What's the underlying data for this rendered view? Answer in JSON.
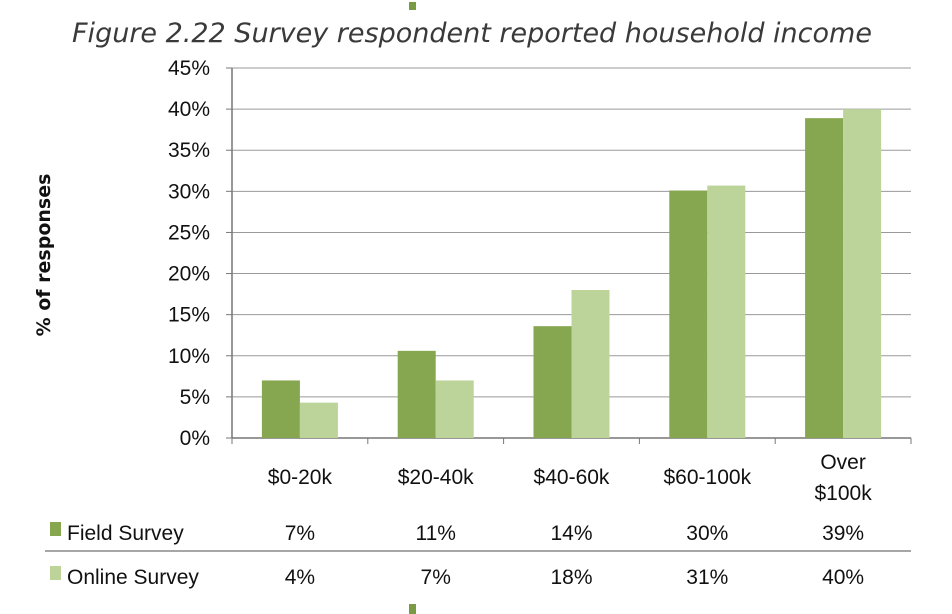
{
  "chart_data": {
    "type": "bar",
    "title": "Figure 2.22  Survey respondent reported household income",
    "ylabel": "% of responses",
    "xlabel": "",
    "ylim": [
      0,
      45
    ],
    "yticks": [
      0,
      5,
      10,
      15,
      20,
      25,
      30,
      35,
      40,
      45
    ],
    "grid": true,
    "legend": "data-table-below",
    "categories": [
      [
        "$0-20k"
      ],
      [
        "$20-40k"
      ],
      [
        "$40-60k"
      ],
      [
        "$60-100k"
      ],
      [
        "Over",
        "$100k"
      ]
    ],
    "series": [
      {
        "name": "Field Survey",
        "color": "#86a64f",
        "values": [
          7,
          10.6,
          13.6,
          30.1,
          38.9
        ],
        "labels": [
          "7%",
          "11%",
          "14%",
          "30%",
          "39%"
        ]
      },
      {
        "name": "Online Survey",
        "color": "#bcd49a",
        "values": [
          4.3,
          7,
          18,
          30.7,
          40
        ],
        "labels": [
          "4%",
          "7%",
          "18%",
          "31%",
          "40%"
        ]
      }
    ]
  }
}
